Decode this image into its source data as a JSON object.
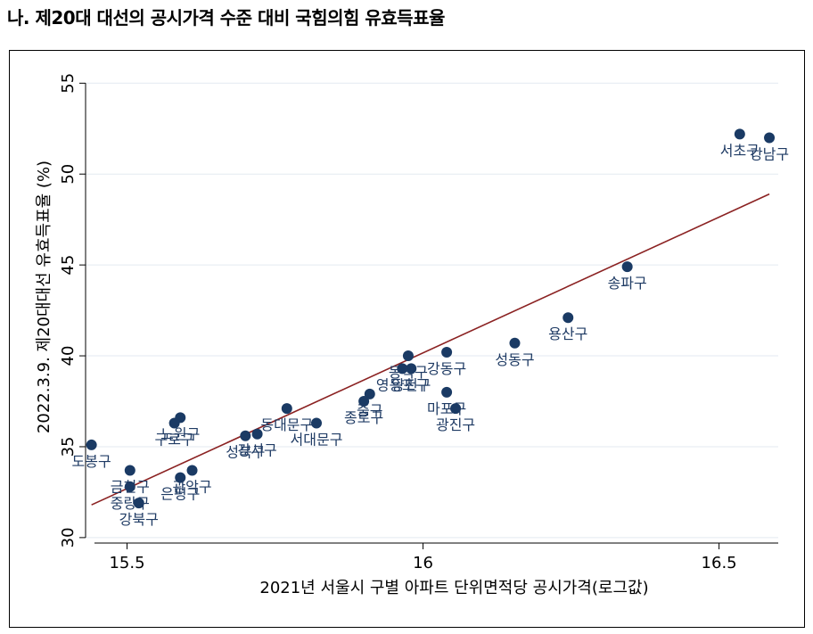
{
  "header": {
    "title": "나. 제20대 대선의 공시가격 수준 대비 국힘의힘 유효득표율"
  },
  "chart_data": {
    "type": "scatter",
    "title": "",
    "xlabel": "2021년 서울시 구별 아파트 단위면적당 공시가격(로그값)",
    "ylabel": "2022.3.9. 제20대대선 유효득표율 (%)",
    "xlim": [
      15.43,
      16.6
    ],
    "ylim": [
      29.7,
      55.8
    ],
    "xticks": [
      15.5,
      16,
      16.5
    ],
    "xtick_labels": [
      "15.5",
      "16",
      "16.5"
    ],
    "yticks": [
      30,
      35,
      40,
      45,
      50,
      55
    ],
    "ytick_labels": [
      "30",
      "35",
      "40",
      "45",
      "50",
      "55"
    ],
    "grid": true,
    "colors": {
      "point": "#1a3a64",
      "fit_line": "#8b2222",
      "label": "#1f3b64",
      "grid": "#e3eaf0"
    },
    "points": [
      {
        "label": "도봉구",
        "x": 15.44,
        "y": 35.1
      },
      {
        "label": "중랑구",
        "x": 15.505,
        "y": 32.8
      },
      {
        "label": "금천구",
        "x": 15.505,
        "y": 33.7
      },
      {
        "label": "강북구",
        "x": 15.52,
        "y": 31.9
      },
      {
        "label": "구로구",
        "x": 15.58,
        "y": 36.3
      },
      {
        "label": "노원구",
        "x": 15.59,
        "y": 36.6
      },
      {
        "label": "은평구",
        "x": 15.59,
        "y": 33.3
      },
      {
        "label": "관악구",
        "x": 15.61,
        "y": 33.7
      },
      {
        "label": "성북구",
        "x": 15.7,
        "y": 35.6
      },
      {
        "label": "강서구",
        "x": 15.72,
        "y": 35.7
      },
      {
        "label": "동대문구",
        "x": 15.77,
        "y": 37.1
      },
      {
        "label": "서대문구",
        "x": 15.82,
        "y": 36.3
      },
      {
        "label": "종로구",
        "x": 15.9,
        "y": 37.5
      },
      {
        "label": "중구",
        "x": 15.91,
        "y": 37.9
      },
      {
        "label": "영등포구",
        "x": 15.965,
        "y": 39.3
      },
      {
        "label": "동작구",
        "x": 15.975,
        "y": 40.0
      },
      {
        "label": "양천구",
        "x": 15.98,
        "y": 39.3
      },
      {
        "label": "강동구",
        "x": 16.04,
        "y": 40.2
      },
      {
        "label": "마포구",
        "x": 16.04,
        "y": 38.0
      },
      {
        "label": "광진구",
        "x": 16.055,
        "y": 37.1
      },
      {
        "label": "성동구",
        "x": 16.155,
        "y": 40.7
      },
      {
        "label": "용산구",
        "x": 16.245,
        "y": 42.1
      },
      {
        "label": "송파구",
        "x": 16.345,
        "y": 44.9
      },
      {
        "label": "서초구",
        "x": 16.535,
        "y": 52.2
      },
      {
        "label": "강남구",
        "x": 16.585,
        "y": 52.0
      }
    ],
    "fit_line": {
      "x": [
        15.44,
        16.585
      ],
      "y": [
        31.8,
        48.9
      ]
    }
  }
}
